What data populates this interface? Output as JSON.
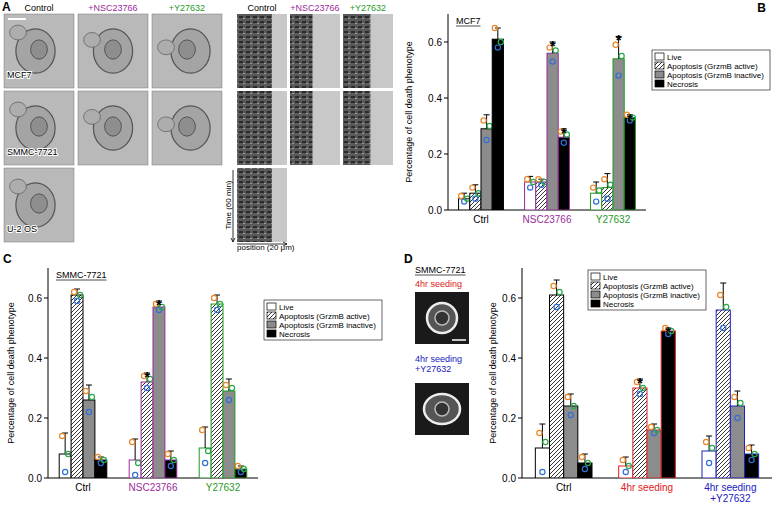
{
  "panel_a": {
    "label": "A",
    "columns": [
      "Control",
      "+NSC23766",
      "+Y27632"
    ],
    "rows": [
      "MCF7",
      "SMMC-7721",
      "U-2 OS"
    ],
    "kymo_columns": [
      "Control",
      "+NSC23766",
      "+Y27632"
    ],
    "kymo_y_label": "Time (60 min)",
    "kymo_x_label": "position (20 μm)"
  },
  "panel_d_images": {
    "title": "SMMC-7721",
    "labels": [
      "4hr seeding",
      "4hr seeding\n+Y27632"
    ]
  },
  "chart_data": [
    {
      "type": "bar",
      "label": "B",
      "title": "MCF7",
      "y_label": "Percentage of cell death phenotype",
      "categories": [
        "Ctrl",
        "NSC23766",
        "Y27632"
      ],
      "ylim": [
        0,
        0.7
      ],
      "yticks": [
        {
          "value": 0,
          "label": "0.0"
        },
        0.2,
        0.4,
        0.6
      ],
      "legend": "right",
      "series": [
        {
          "name": "Live",
          "color": "#ffffff",
          "values": [
            0.04,
            0.1,
            0.06
          ],
          "errors": [
            0.02,
            0.02,
            0.04
          ],
          "points": [
            [
              0.05,
              0.03,
              0.04
            ],
            [
              0.11,
              0.08,
              0.1
            ],
            [
              0.08,
              0.03,
              0.07
            ]
          ]
        },
        {
          "name": "Apoptosis (GrzmB active)",
          "color": "#ffffff",
          "line_style": "hatched",
          "values": [
            0.06,
            0.1,
            0.08
          ],
          "errors": [
            0.03,
            0.01,
            0.05
          ],
          "points": [
            [
              0.08,
              0.04,
              0.06
            ],
            [
              0.11,
              0.09,
              0.1
            ],
            [
              0.11,
              0.04,
              0.09
            ]
          ]
        },
        {
          "name": "Apoptosis (GrzmB inactive)",
          "color": "#8c8c8c",
          "values": [
            0.29,
            0.56,
            0.54
          ],
          "errors": [
            0.05,
            0.04,
            0.08
          ],
          "points": [
            [
              0.32,
              0.25,
              0.3
            ],
            [
              0.58,
              0.53,
              0.57
            ],
            [
              0.59,
              0.48,
              0.55
            ]
          ]
        },
        {
          "name": "Necrosis",
          "color": "#000000",
          "values": [
            0.61,
            0.26,
            0.33
          ],
          "errors": [
            0.04,
            0.03,
            0.01
          ],
          "points": [
            [
              0.65,
              0.58,
              0.6
            ],
            [
              0.28,
              0.24,
              0.27
            ],
            [
              0.34,
              0.32,
              0.33
            ]
          ]
        }
      ],
      "annotations": [
        {
          "text": "*",
          "category": 1,
          "series": 2
        },
        {
          "text": "*",
          "category": 1,
          "series": 3
        },
        {
          "text": "*",
          "category": 2,
          "series": 2
        },
        {
          "text": "*",
          "category": 2,
          "series": 3
        }
      ]
    },
    {
      "type": "bar",
      "label": "C",
      "title": "SMMC-7721",
      "y_label": "Percentage of cell death phenotype",
      "categories": [
        "Ctrl",
        "NSC23766",
        "Y27632"
      ],
      "ylim": [
        0,
        0.7
      ],
      "yticks": [
        {
          "value": 0,
          "label": "0.0"
        },
        0.2,
        0.4,
        0.6
      ],
      "legend": "right",
      "series": [
        {
          "name": "Live",
          "color": "#ffffff",
          "values": [
            0.08,
            0.06,
            0.1
          ],
          "errors": [
            0.07,
            0.07,
            0.07
          ],
          "points": [
            [
              0.14,
              0.02,
              0.08
            ],
            [
              0.12,
              0.01,
              0.05
            ],
            [
              0.16,
              0.05,
              0.09
            ]
          ]
        },
        {
          "name": "Apoptosis (GrzmB active)",
          "color": "#ffffff",
          "line_style": "hatched",
          "values": [
            0.61,
            0.32,
            0.58
          ],
          "errors": [
            0.02,
            0.03,
            0.03
          ],
          "points": [
            [
              0.62,
              0.59,
              0.61
            ],
            [
              0.34,
              0.3,
              0.33
            ],
            [
              0.6,
              0.56,
              0.58
            ]
          ]
        },
        {
          "name": "Apoptosis (GrzmB inactive)",
          "color": "#8c8c8c",
          "values": [
            0.26,
            0.57,
            0.29
          ],
          "errors": [
            0.05,
            0.02,
            0.04
          ],
          "points": [
            [
              0.29,
              0.22,
              0.27
            ],
            [
              0.58,
              0.56,
              0.57
            ],
            [
              0.31,
              0.26,
              0.3
            ]
          ]
        },
        {
          "name": "Necrosis",
          "color": "#000000",
          "values": [
            0.06,
            0.06,
            0.03
          ],
          "errors": [
            0.01,
            0.03,
            0.01
          ],
          "points": [
            [
              0.07,
              0.05,
              0.06
            ],
            [
              0.08,
              0.04,
              0.06
            ],
            [
              0.04,
              0.02,
              0.03
            ]
          ]
        }
      ],
      "annotations": [
        {
          "text": "*",
          "category": 1,
          "series": 1
        },
        {
          "text": "*",
          "category": 1,
          "series": 2
        }
      ]
    },
    {
      "type": "bar",
      "label": "D",
      "y_label": "Percentage of cell death phenotype",
      "categories": [
        "Ctrl",
        "4hr seeding",
        "4hr seeding\n+Y27632"
      ],
      "ylim": [
        0,
        0.7
      ],
      "yticks": [
        {
          "value": 0,
          "label": "0.0"
        },
        0.2,
        0.4,
        0.6
      ],
      "legend": "top",
      "series": [
        {
          "name": "Live",
          "color": "#ffffff",
          "values": [
            0.1,
            0.04,
            0.09
          ],
          "errors": [
            0.08,
            0.03,
            0.05
          ],
          "points": [
            [
              0.15,
              0.02,
              0.12
            ],
            [
              0.06,
              0.02,
              0.04
            ],
            [
              0.12,
              0.05,
              0.1
            ]
          ]
        },
        {
          "name": "Apoptosis (GrzmB active)",
          "color": "#ffffff",
          "line_style": "hatched",
          "values": [
            0.61,
            0.3,
            0.56
          ],
          "errors": [
            0.05,
            0.03,
            0.09
          ],
          "points": [
            [
              0.64,
              0.57,
              0.62
            ],
            [
              0.32,
              0.28,
              0.3
            ],
            [
              0.61,
              0.5,
              0.57
            ]
          ]
        },
        {
          "name": "Apoptosis (GrzmB inactive)",
          "color": "#8c8c8c",
          "values": [
            0.24,
            0.16,
            0.24
          ],
          "errors": [
            0.04,
            0.02,
            0.05
          ],
          "points": [
            [
              0.27,
              0.21,
              0.24
            ],
            [
              0.17,
              0.15,
              0.16
            ],
            [
              0.27,
              0.2,
              0.25
            ]
          ]
        },
        {
          "name": "Necrosis",
          "color": "#000000",
          "values": [
            0.05,
            0.49,
            0.08
          ],
          "errors": [
            0.03,
            0.01,
            0.03
          ],
          "points": [
            [
              0.07,
              0.03,
              0.05
            ],
            [
              0.5,
              0.48,
              0.49
            ],
            [
              0.1,
              0.06,
              0.08
            ]
          ]
        }
      ],
      "annotations": [
        {
          "text": "*",
          "category": 1,
          "series": 1
        },
        {
          "text": "*",
          "category": 1,
          "series": 3
        }
      ]
    }
  ]
}
